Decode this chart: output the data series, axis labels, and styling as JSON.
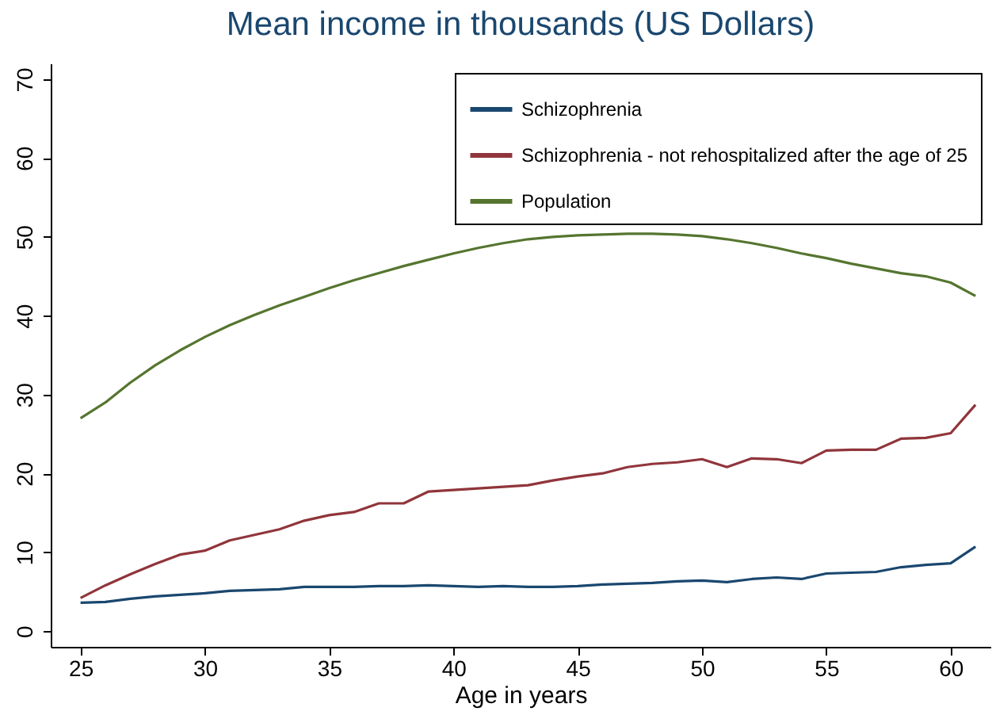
{
  "chart_data": {
    "type": "line",
    "title": "Mean income in thousands (US Dollars)",
    "xlabel": "Age in years",
    "x": [
      25,
      26,
      27,
      28,
      29,
      30,
      31,
      32,
      33,
      34,
      35,
      36,
      37,
      38,
      39,
      40,
      41,
      42,
      43,
      44,
      45,
      46,
      47,
      48,
      49,
      50,
      51,
      52,
      53,
      54,
      55,
      56,
      57,
      58,
      59,
      60,
      61
    ],
    "series": [
      {
        "name": "Schizophrenia",
        "color": "#1a476f",
        "values": [
          3.6,
          3.7,
          4.1,
          4.4,
          4.6,
          4.8,
          5.1,
          5.2,
          5.3,
          5.6,
          5.6,
          5.6,
          5.7,
          5.7,
          5.8,
          5.7,
          5.6,
          5.7,
          5.6,
          5.6,
          5.7,
          5.9,
          6.0,
          6.1,
          6.3,
          6.4,
          6.2,
          6.6,
          6.8,
          6.6,
          7.3,
          7.4,
          7.5,
          8.1,
          8.4,
          8.6,
          10.7
        ]
      },
      {
        "name": "Schizophrenia - not rehospitalized after the age of 25",
        "color": "#90353b",
        "values": [
          4.2,
          5.8,
          7.2,
          8.5,
          9.7,
          10.2,
          11.5,
          12.2,
          12.9,
          14.0,
          14.7,
          15.1,
          16.2,
          16.2,
          17.7,
          17.9,
          18.1,
          18.3,
          18.5,
          19.1,
          19.6,
          20.0,
          20.8,
          21.2,
          21.4,
          21.8,
          20.8,
          21.9,
          21.8,
          21.3,
          22.9,
          23.0,
          23.0,
          24.4,
          24.5,
          25.1,
          28.7
        ]
      },
      {
        "name": "Population",
        "color": "#55752f",
        "values": [
          27.0,
          29.0,
          31.5,
          33.7,
          35.6,
          37.3,
          38.8,
          40.1,
          41.3,
          42.4,
          43.5,
          44.5,
          45.4,
          46.3,
          47.1,
          47.9,
          48.6,
          49.2,
          49.7,
          50.0,
          50.2,
          50.3,
          50.4,
          50.4,
          50.3,
          50.1,
          49.7,
          49.2,
          48.6,
          47.9,
          47.3,
          46.6,
          46.0,
          45.4,
          45.0,
          44.2,
          42.5
        ]
      }
    ],
    "xlim": [
      23.8,
      61.6
    ],
    "xticks": [
      25,
      30,
      35,
      40,
      45,
      50,
      55,
      60
    ],
    "ylim": [
      -2,
      72
    ],
    "yticks": [
      0,
      10,
      20,
      30,
      40,
      50,
      60,
      70
    ],
    "grid": false,
    "legend": "top right",
    "marker": "none",
    "line_style": "solid"
  }
}
